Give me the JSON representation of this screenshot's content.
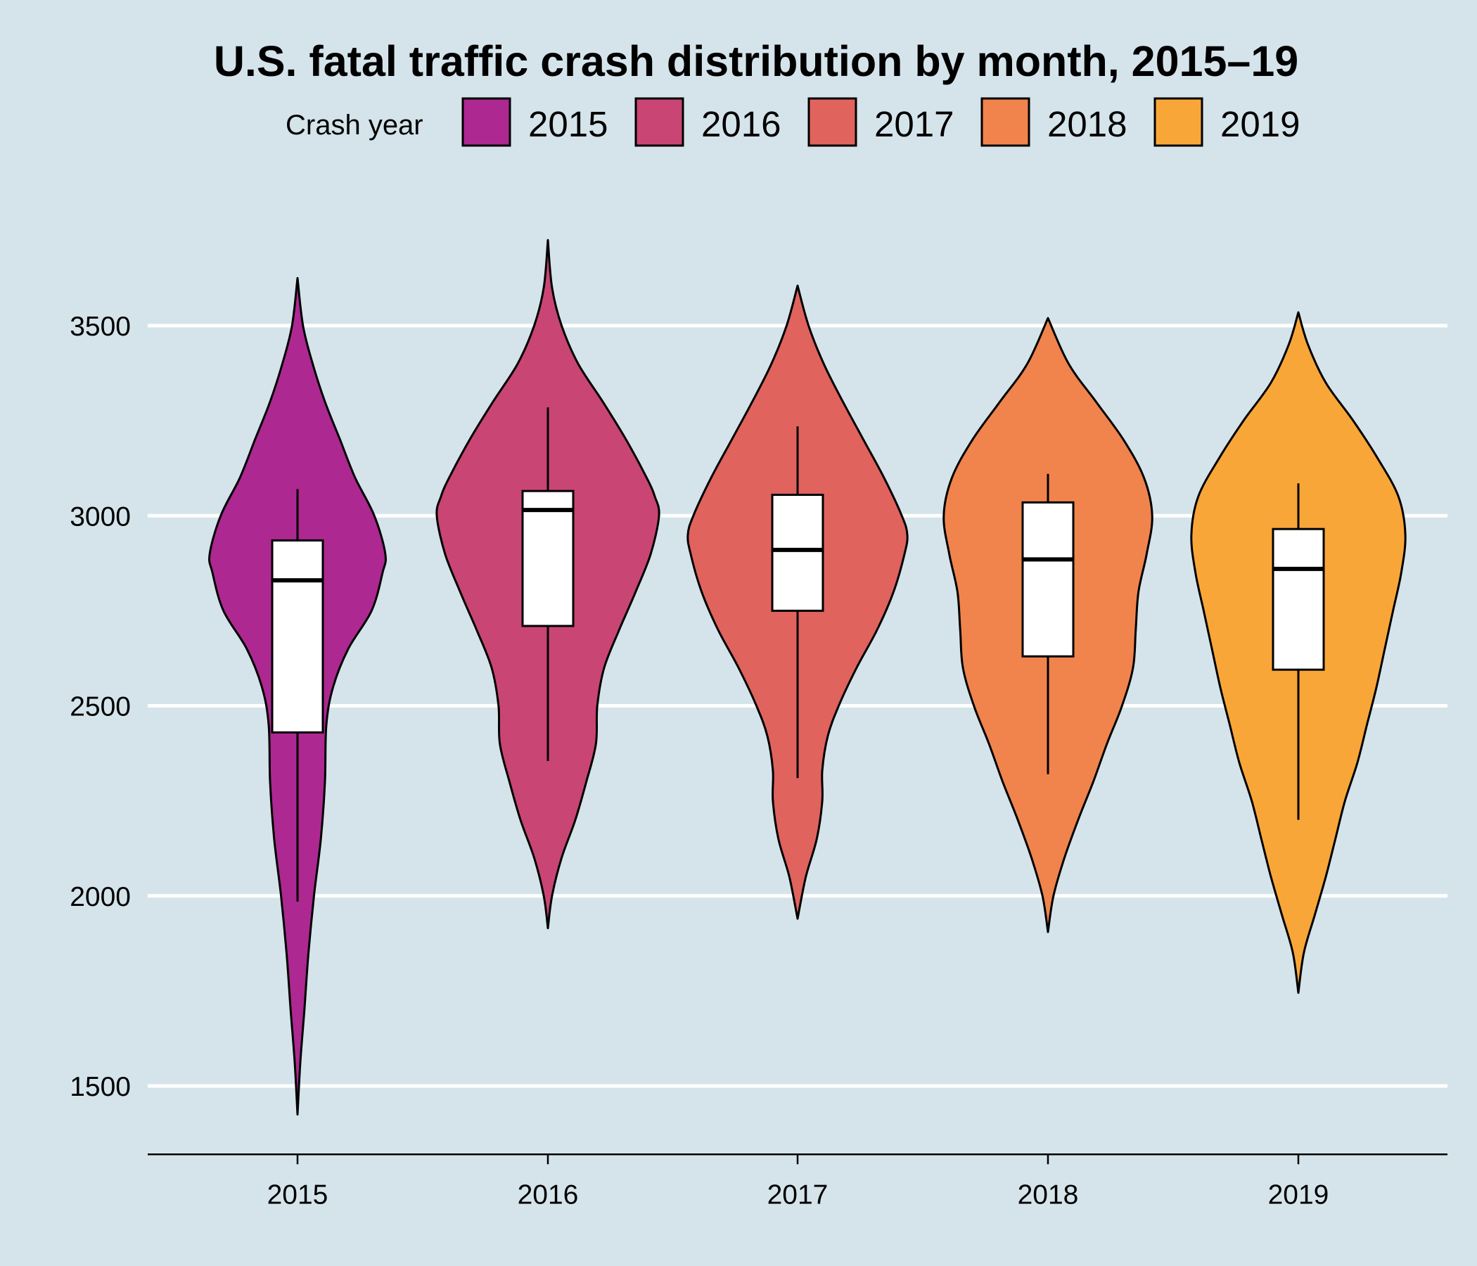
{
  "title": "U.S. fatal traffic crash distribution by month, 2015–19",
  "legend": {
    "title": "Crash year",
    "items": [
      {
        "label": "2015",
        "color": "#ad2891"
      },
      {
        "label": "2016",
        "color": "#c94574"
      },
      {
        "label": "2017",
        "color": "#e0635e"
      },
      {
        "label": "2018",
        "color": "#f0844c"
      },
      {
        "label": "2019",
        "color": "#f9a639"
      }
    ]
  },
  "colors": {
    "background": "#d5e4eb",
    "gridline": "#ffffff",
    "outline": "#000000",
    "box_fill": "#ffffff"
  },
  "chart_data": {
    "type": "violin",
    "title": "U.S. fatal traffic crash distribution by month, 2015–19",
    "xlabel": "",
    "ylabel": "",
    "categories": [
      "2015",
      "2016",
      "2017",
      "2018",
      "2019"
    ],
    "yticks": [
      1500,
      2000,
      2500,
      3000,
      3500
    ],
    "ylim": [
      1320,
      3830
    ],
    "grid": {
      "horizontal": true,
      "vertical": false
    },
    "legend_position": "top",
    "series": [
      {
        "category": "2015",
        "violin_min": 1425,
        "violin_max": 3625,
        "density": [
          [
            1425,
            0.0
          ],
          [
            1560,
            0.02
          ],
          [
            1700,
            0.05
          ],
          [
            1850,
            0.08
          ],
          [
            2000,
            0.12
          ],
          [
            2150,
            0.17
          ],
          [
            2300,
            0.2
          ],
          [
            2450,
            0.21
          ],
          [
            2550,
            0.26
          ],
          [
            2650,
            0.37
          ],
          [
            2750,
            0.54
          ],
          [
            2850,
            0.62
          ],
          [
            2900,
            0.64
          ],
          [
            3000,
            0.56
          ],
          [
            3100,
            0.42
          ],
          [
            3200,
            0.31
          ],
          [
            3300,
            0.2
          ],
          [
            3400,
            0.11
          ],
          [
            3500,
            0.04
          ],
          [
            3625,
            0.0
          ]
        ],
        "box": {
          "whisker_low": 1985,
          "q1": 2430,
          "median": 2830,
          "q3": 2935,
          "whisker_high": 3070
        }
      },
      {
        "category": "2016",
        "violin_min": 1915,
        "violin_max": 3725,
        "density": [
          [
            1915,
            0.0
          ],
          [
            2000,
            0.03
          ],
          [
            2100,
            0.1
          ],
          [
            2200,
            0.2
          ],
          [
            2300,
            0.28
          ],
          [
            2400,
            0.35
          ],
          [
            2500,
            0.36
          ],
          [
            2600,
            0.41
          ],
          [
            2700,
            0.52
          ],
          [
            2800,
            0.64
          ],
          [
            2900,
            0.75
          ],
          [
            3000,
            0.81
          ],
          [
            3050,
            0.78
          ],
          [
            3100,
            0.72
          ],
          [
            3200,
            0.57
          ],
          [
            3300,
            0.4
          ],
          [
            3400,
            0.22
          ],
          [
            3500,
            0.1
          ],
          [
            3600,
            0.03
          ],
          [
            3725,
            0.0
          ]
        ],
        "box": {
          "whisker_low": 2355,
          "q1": 2710,
          "median": 3015,
          "q3": 3065,
          "whisker_high": 3285
        }
      },
      {
        "category": "2017",
        "violin_min": 1940,
        "violin_max": 3605,
        "density": [
          [
            1940,
            0.0
          ],
          [
            2050,
            0.06
          ],
          [
            2150,
            0.14
          ],
          [
            2250,
            0.18
          ],
          [
            2330,
            0.18
          ],
          [
            2420,
            0.22
          ],
          [
            2500,
            0.3
          ],
          [
            2600,
            0.43
          ],
          [
            2700,
            0.58
          ],
          [
            2800,
            0.7
          ],
          [
            2900,
            0.78
          ],
          [
            2950,
            0.8
          ],
          [
            3000,
            0.76
          ],
          [
            3100,
            0.63
          ],
          [
            3200,
            0.48
          ],
          [
            3300,
            0.33
          ],
          [
            3400,
            0.19
          ],
          [
            3500,
            0.08
          ],
          [
            3605,
            0.0
          ]
        ],
        "box": {
          "whisker_low": 2310,
          "q1": 2750,
          "median": 2910,
          "q3": 3055,
          "whisker_high": 3235
        }
      },
      {
        "category": "2018",
        "violin_min": 1905,
        "violin_max": 3520,
        "density": [
          [
            1905,
            0.0
          ],
          [
            2000,
            0.04
          ],
          [
            2100,
            0.12
          ],
          [
            2200,
            0.22
          ],
          [
            2300,
            0.33
          ],
          [
            2400,
            0.43
          ],
          [
            2500,
            0.54
          ],
          [
            2600,
            0.62
          ],
          [
            2700,
            0.64
          ],
          [
            2800,
            0.66
          ],
          [
            2900,
            0.72
          ],
          [
            3000,
            0.76
          ],
          [
            3100,
            0.7
          ],
          [
            3200,
            0.55
          ],
          [
            3300,
            0.35
          ],
          [
            3400,
            0.15
          ],
          [
            3520,
            0.0
          ]
        ],
        "box": {
          "whisker_low": 2320,
          "q1": 2630,
          "median": 2885,
          "q3": 3035,
          "whisker_high": 3110
        }
      },
      {
        "category": "2019",
        "violin_min": 1745,
        "violin_max": 3535,
        "density": [
          [
            1745,
            0.0
          ],
          [
            1850,
            0.04
          ],
          [
            1950,
            0.12
          ],
          [
            2050,
            0.2
          ],
          [
            2150,
            0.27
          ],
          [
            2250,
            0.34
          ],
          [
            2350,
            0.43
          ],
          [
            2450,
            0.5
          ],
          [
            2550,
            0.57
          ],
          [
            2650,
            0.63
          ],
          [
            2750,
            0.69
          ],
          [
            2850,
            0.75
          ],
          [
            2950,
            0.78
          ],
          [
            3050,
            0.73
          ],
          [
            3150,
            0.58
          ],
          [
            3250,
            0.4
          ],
          [
            3350,
            0.2
          ],
          [
            3450,
            0.07
          ],
          [
            3535,
            0.0
          ]
        ],
        "box": {
          "whisker_low": 2200,
          "q1": 2595,
          "median": 2860,
          "q3": 2965,
          "whisker_high": 3085
        }
      }
    ]
  }
}
